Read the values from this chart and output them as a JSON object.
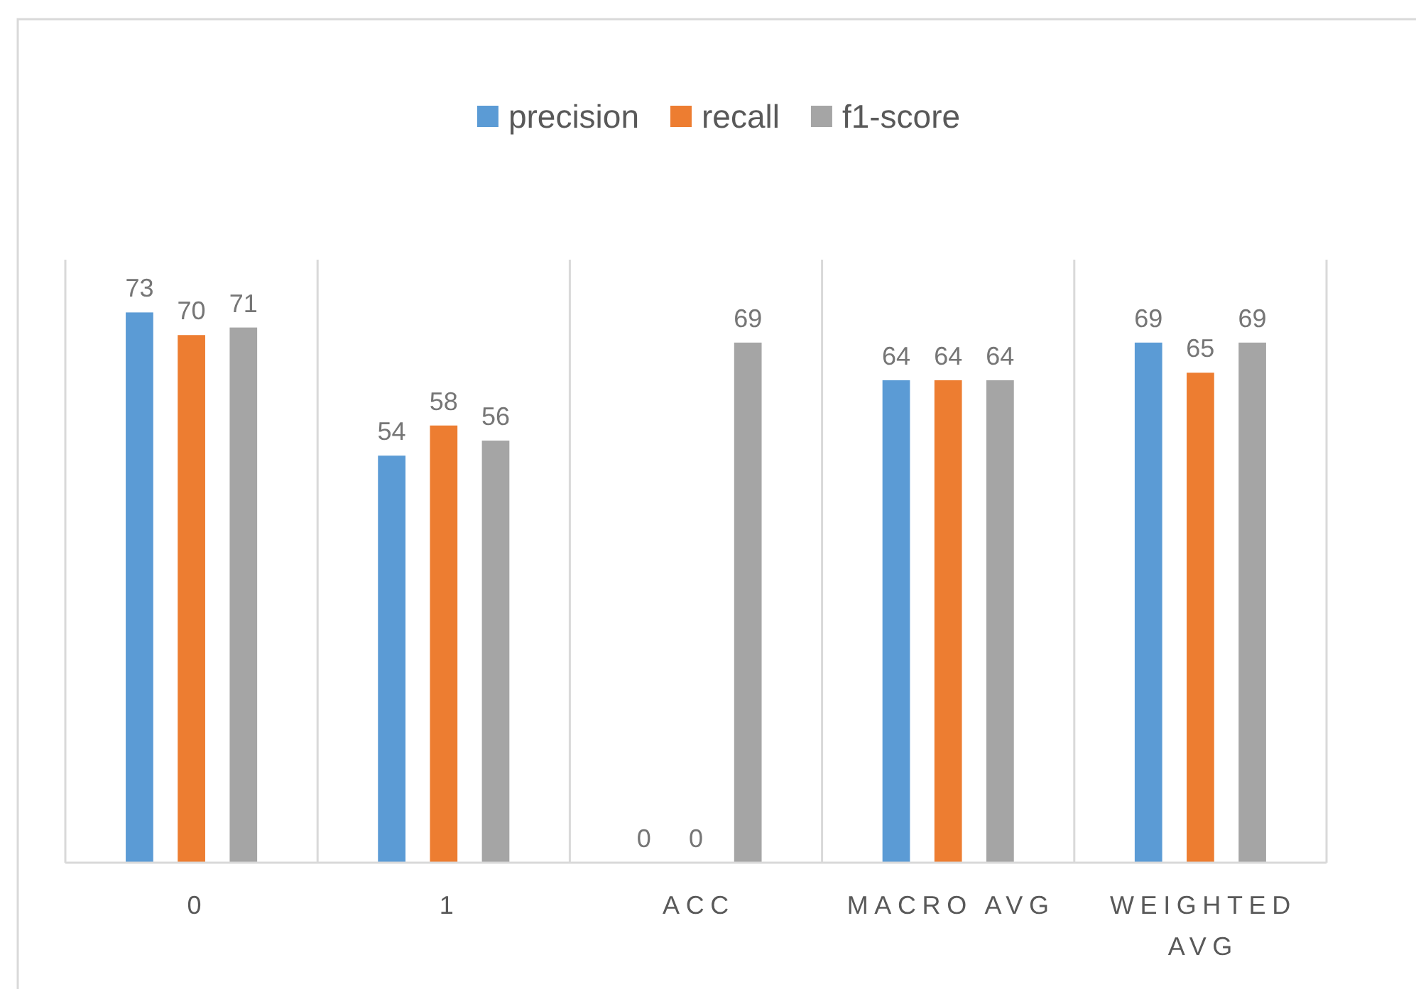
{
  "chart_data": {
    "type": "bar",
    "categories": [
      "0",
      "1",
      "ACC",
      "MACRO AVG",
      "WEIGHTED AVG"
    ],
    "series": [
      {
        "name": "precision",
        "color": "#5b9bd5",
        "values": [
          73,
          54,
          0,
          64,
          69
        ]
      },
      {
        "name": "recall",
        "color": "#ed7d31",
        "values": [
          70,
          58,
          0,
          64,
          65
        ]
      },
      {
        "name": "f1-score",
        "color": "#a5a5a5",
        "values": [
          71,
          56,
          69,
          64,
          69
        ]
      }
    ],
    "ylim": [
      0,
      80
    ],
    "grid": "x",
    "legend": "top",
    "data_labels": true,
    "tick_labels": "x"
  }
}
